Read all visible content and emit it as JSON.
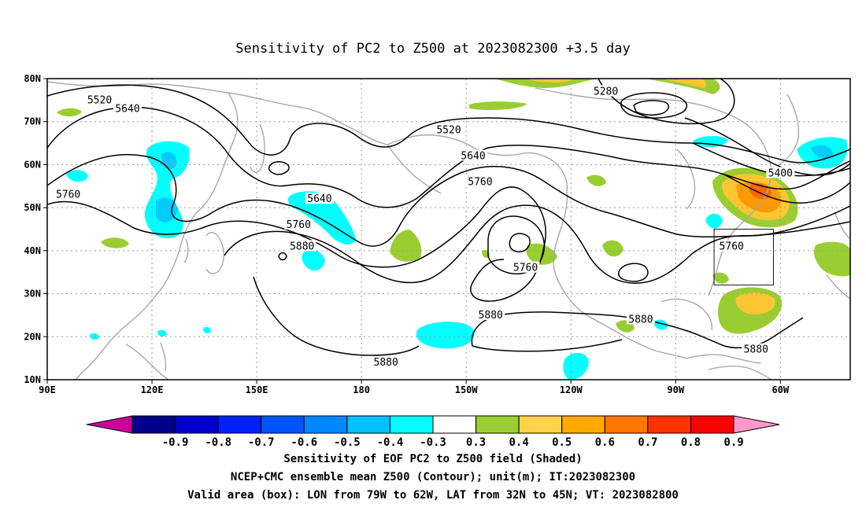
{
  "title": "Sensitivity of PC2 to Z500 at 2023082300 +3.5 day",
  "map": {
    "lon_labels": [
      "90E",
      "120E",
      "150E",
      "180",
      "150W",
      "120W",
      "90W",
      "60W"
    ],
    "lat_labels": [
      "80N",
      "70N",
      "60N",
      "50N",
      "40N",
      "30N",
      "20N",
      "10N"
    ],
    "lat_values": [
      80,
      70,
      60,
      50,
      40,
      30,
      20,
      10
    ],
    "contour_labels": [
      {
        "text": "5520",
        "lon": 105,
        "lat": 75
      },
      {
        "text": "5640",
        "lon": 113,
        "lat": 73
      },
      {
        "text": "5760",
        "lon": 96,
        "lat": 53
      },
      {
        "text": "5640",
        "lon": 168,
        "lat": 52
      },
      {
        "text": "5760",
        "lon": 162,
        "lat": 46
      },
      {
        "text": "5880",
        "lon": 163,
        "lat": 41
      },
      {
        "text": "5520",
        "lon": -155,
        "lat": 68
      },
      {
        "text": "5640",
        "lon": -148,
        "lat": 62
      },
      {
        "text": "5760",
        "lon": -146,
        "lat": 56
      },
      {
        "text": "5280",
        "lon": -110,
        "lat": 77
      },
      {
        "text": "5400",
        "lon": -60,
        "lat": 58
      },
      {
        "text": "5760",
        "lon": -74,
        "lat": 41
      },
      {
        "text": "5760",
        "lon": -133,
        "lat": 36
      },
      {
        "text": "5880",
        "lon": -143,
        "lat": 25
      },
      {
        "text": "5880",
        "lon": -100,
        "lat": 24
      },
      {
        "text": "5880",
        "lon": -67,
        "lat": 17
      },
      {
        "text": "5880",
        "lon": -173,
        "lat": 14
      }
    ],
    "box": {
      "lon_min": -79,
      "lon_max": -62,
      "lat_min": 32,
      "lat_max": 45
    },
    "colors": {
      "coast": "#a8a8a8",
      "contour": "#000000",
      "grid": "#9a9a9a",
      "pos3": "#9acd32",
      "pos4": "#ffc633",
      "pos5": "#ff9900",
      "pos6": "#ff6600",
      "pos7": "#ff2200",
      "neg3": "#00ffff",
      "neg4": "#00ccff"
    }
  },
  "colorbar": {
    "ticks": [
      "-0.9",
      "-0.8",
      "-0.7",
      "-0.6",
      "-0.5",
      "-0.4",
      "-0.3",
      "0.3",
      "0.4",
      "0.5",
      "0.6",
      "0.7",
      "0.8",
      "0.9"
    ],
    "colors": [
      "#00008b",
      "#0000cd",
      "#0022ff",
      "#0055ff",
      "#0088ff",
      "#00c0ff",
      "#00ffff",
      "#ffffff",
      "#9acd32",
      "#ffd24d",
      "#ffaa00",
      "#ff7700",
      "#ff3300",
      "#ff0000"
    ],
    "end_low": "#cc0099",
    "end_high": "#ff99cc"
  },
  "caption": {
    "line1": "Sensitivity of EOF PC2 to Z500 field (Shaded)",
    "line2": "NCEP+CMC ensemble mean Z500 (Contour); unit(m); IT:2023082300",
    "line3": "Valid area (box): LON from 79W to 62W, LAT from 32N to 45N; VT: 2023082800"
  }
}
